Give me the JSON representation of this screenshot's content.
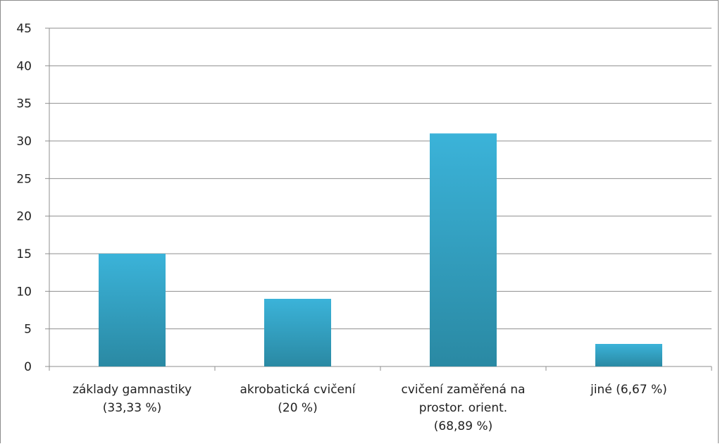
{
  "chart_data": {
    "type": "bar",
    "title": "",
    "xlabel": "",
    "ylabel": "",
    "ylim": [
      0,
      45
    ],
    "yticks": [
      0,
      5,
      10,
      15,
      20,
      25,
      30,
      35,
      40,
      45
    ],
    "grid": true,
    "legend": "none",
    "categories": [
      [
        "základy gamnastiky",
        "(33,33 %)"
      ],
      [
        "akrobatická cvičení",
        "(20 %)"
      ],
      [
        "cvičení zaměřená na",
        "prostor. orient.",
        "(68,89 %)"
      ],
      [
        "jiné (6,67 %)"
      ]
    ],
    "values": [
      15,
      9,
      31,
      3
    ],
    "colors": {
      "bar_top": "#3bb3d9",
      "bar_bottom": "#2a89a3",
      "grid": "#8f8f8f",
      "axis": "#8f8f8f",
      "frame": "#8c8c8c"
    }
  }
}
